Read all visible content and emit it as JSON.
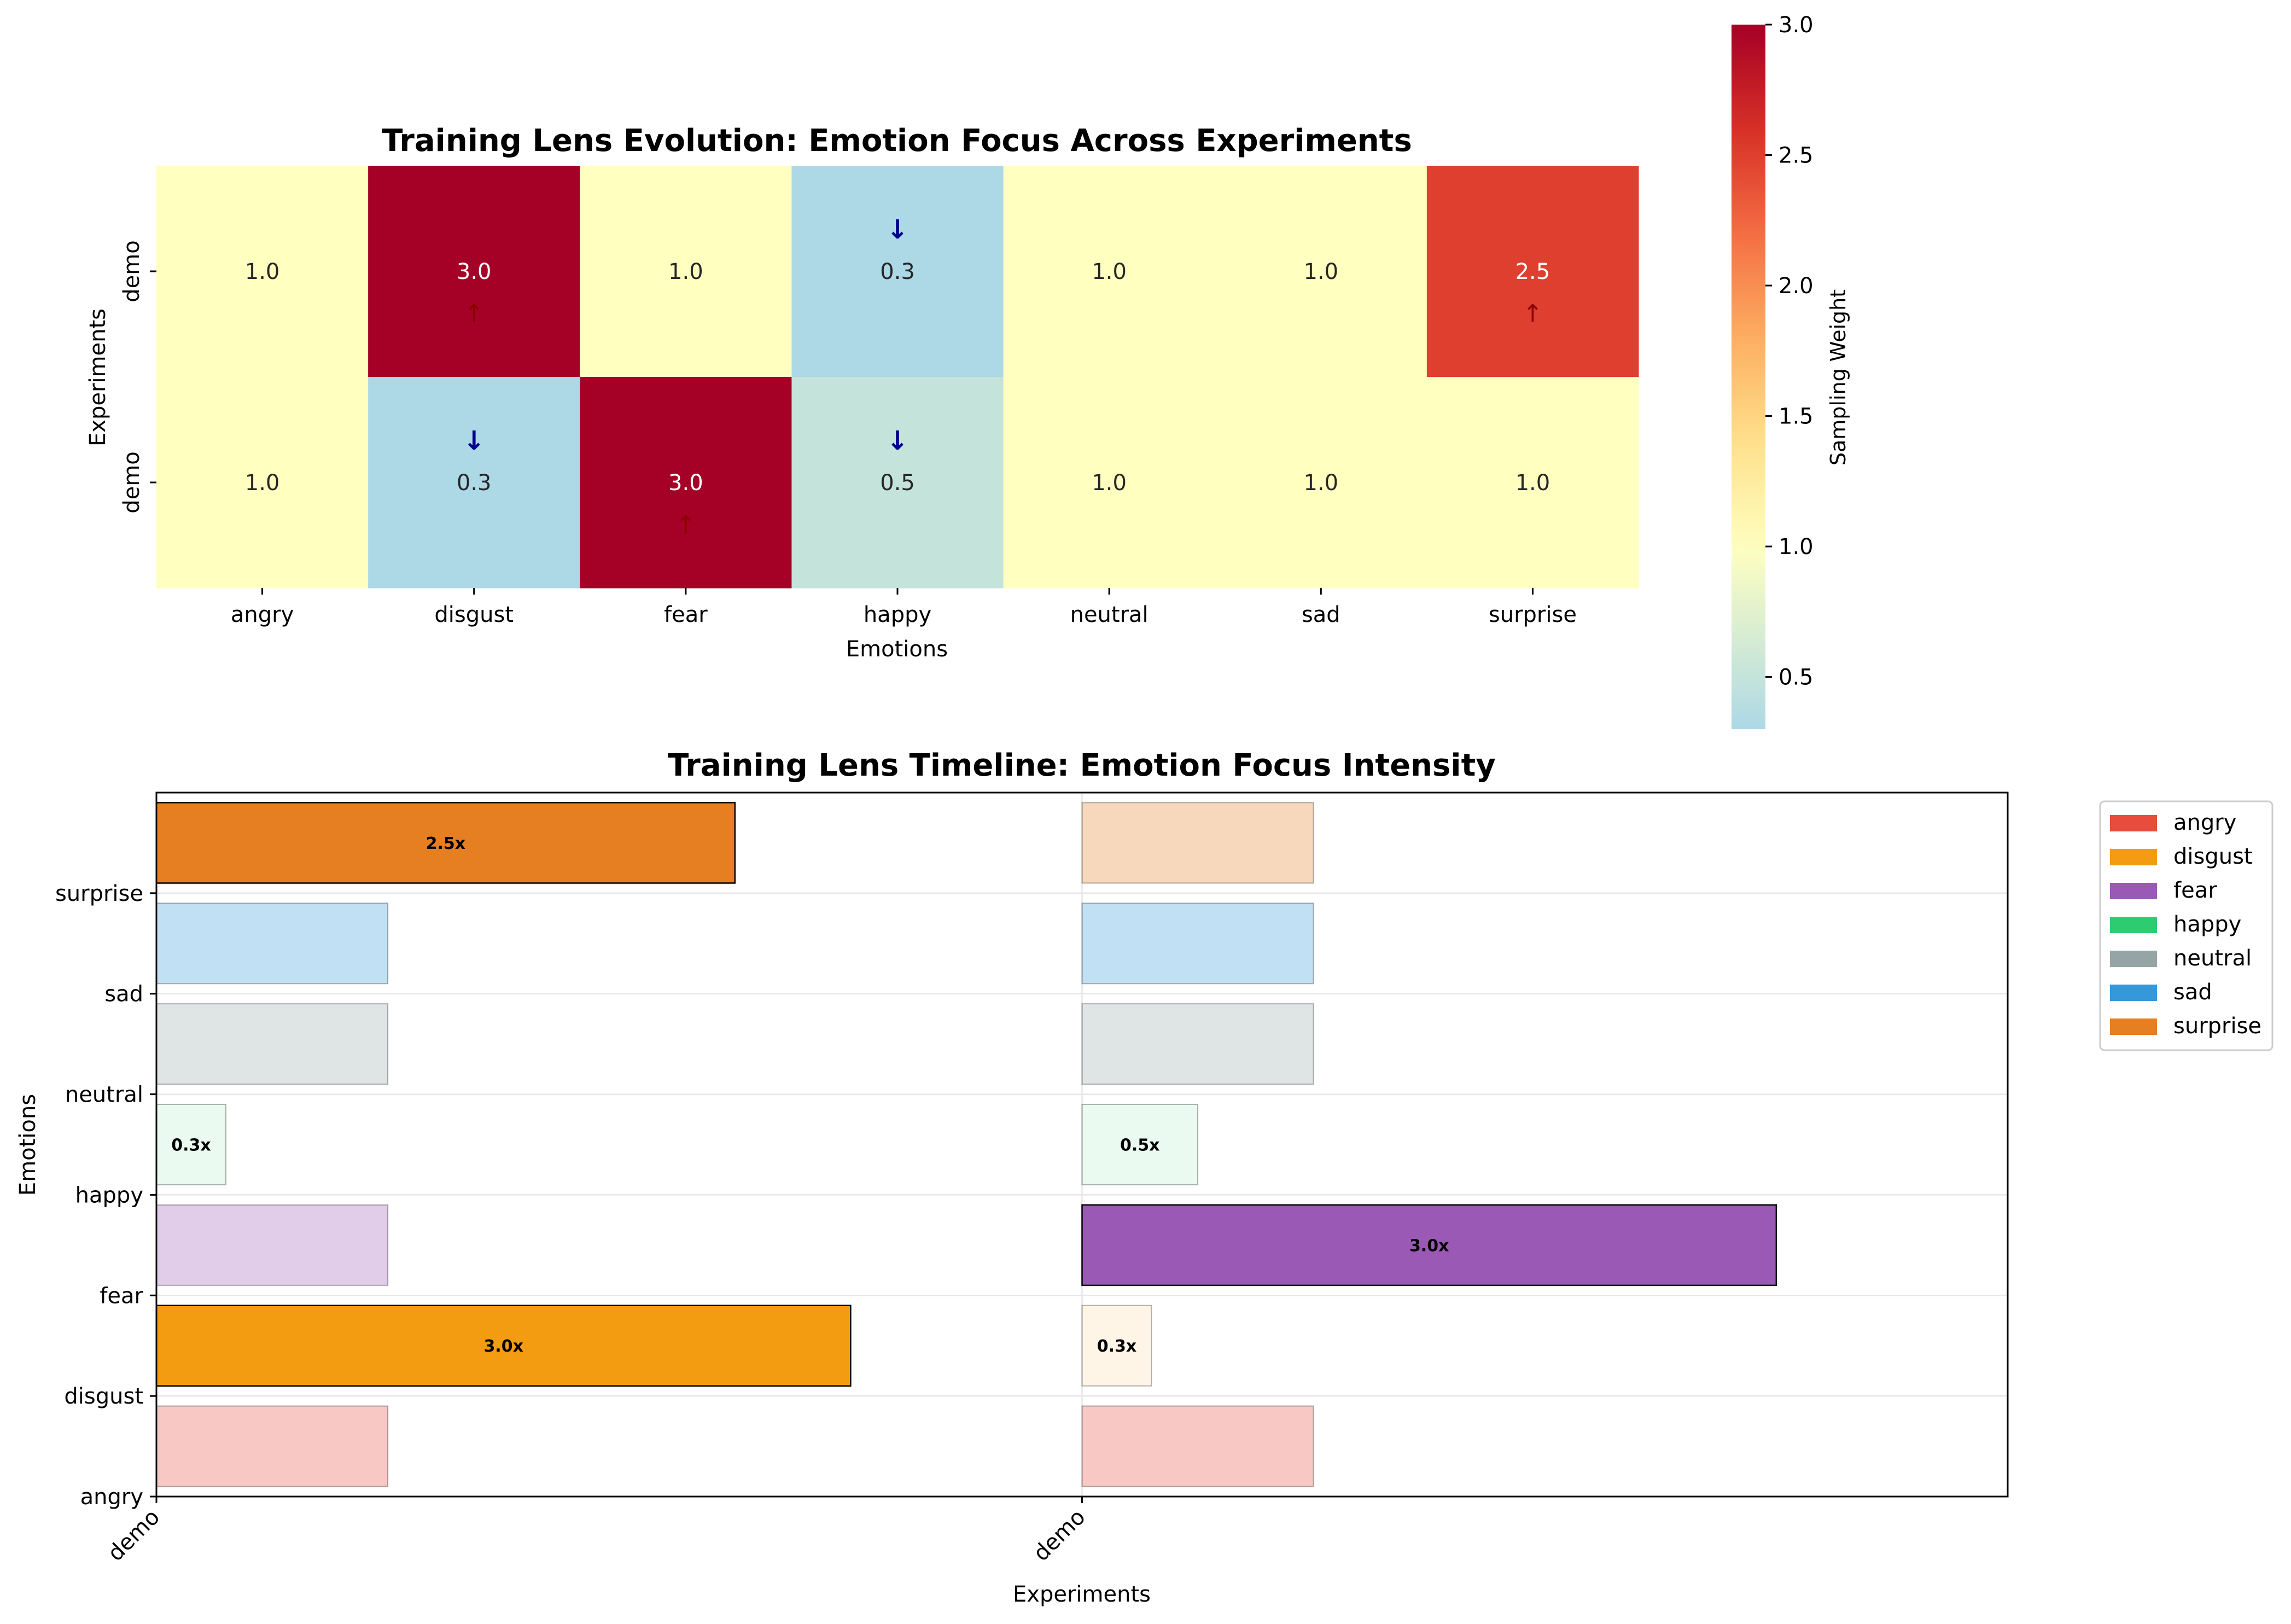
{
  "chart_data": [
    {
      "type": "heatmap",
      "title": "Training Lens Evolution: Emotion Focus Across Experiments",
      "xlabel": "Emotions",
      "ylabel": "Experiments",
      "x_categories": [
        "angry",
        "disgust",
        "fear",
        "happy",
        "neutral",
        "sad",
        "surprise"
      ],
      "y_categories": [
        "demo",
        "demo"
      ],
      "values": [
        [
          1.0,
          3.0,
          1.0,
          0.3,
          1.0,
          1.0,
          2.5
        ],
        [
          1.0,
          0.3,
          3.0,
          0.5,
          1.0,
          1.0,
          1.0
        ]
      ],
      "cell_labels": [
        [
          "1.0",
          "3.0",
          "1.0",
          "0.3",
          "1.0",
          "1.0",
          "2.5"
        ],
        [
          "1.0",
          "0.3",
          "3.0",
          "0.5",
          "1.0",
          "1.0",
          "1.0"
        ]
      ],
      "arrows": {
        "up": "↑",
        "down": "↓",
        "up_color": "#8b0000",
        "down_color": "#00008b"
      },
      "colorbar": {
        "label": "Sampling Weight",
        "range": [
          0.3,
          3.0
        ],
        "ticks": [
          "0.5",
          "1.0",
          "1.5",
          "2.0",
          "2.5",
          "3.0"
        ],
        "colormap": [
          "#add8e6",
          "#ffffc0",
          "#fee08b",
          "#fdae61",
          "#f46d43",
          "#d73027",
          "#a50026"
        ]
      }
    },
    {
      "type": "bar",
      "orientation": "horizontal",
      "title": "Training Lens Timeline: Emotion Focus Intensity",
      "xlabel": "Experiments",
      "ylabel": "Emotions",
      "x_categories": [
        "demo",
        "demo"
      ],
      "y_categories": [
        "angry",
        "disgust",
        "fear",
        "happy",
        "neutral",
        "sad",
        "surprise"
      ],
      "series": [
        {
          "name": "demo",
          "values": [
            1.0,
            3.0,
            1.0,
            0.3,
            1.0,
            1.0,
            2.5
          ],
          "labels": [
            "",
            "3.0x",
            "",
            "0.3x",
            "",
            "",
            "2.5x"
          ]
        },
        {
          "name": "demo",
          "values": [
            1.0,
            0.3,
            3.0,
            0.5,
            1.0,
            1.0,
            1.0
          ],
          "labels": [
            "",
            "0.3x",
            "3.0x",
            "0.5x",
            "",
            "",
            ""
          ]
        }
      ],
      "colors": {
        "angry": "#e74c3c",
        "disgust": "#f39c12",
        "fear": "#9b59b6",
        "happy": "#2ecc71",
        "neutral": "#95a5a6",
        "sad": "#3498db",
        "surprise": "#e67e22"
      },
      "legend": {
        "placement": "outside-top-right",
        "entries": [
          "angry",
          "disgust",
          "fear",
          "happy",
          "neutral",
          "sad",
          "surprise"
        ]
      }
    }
  ]
}
